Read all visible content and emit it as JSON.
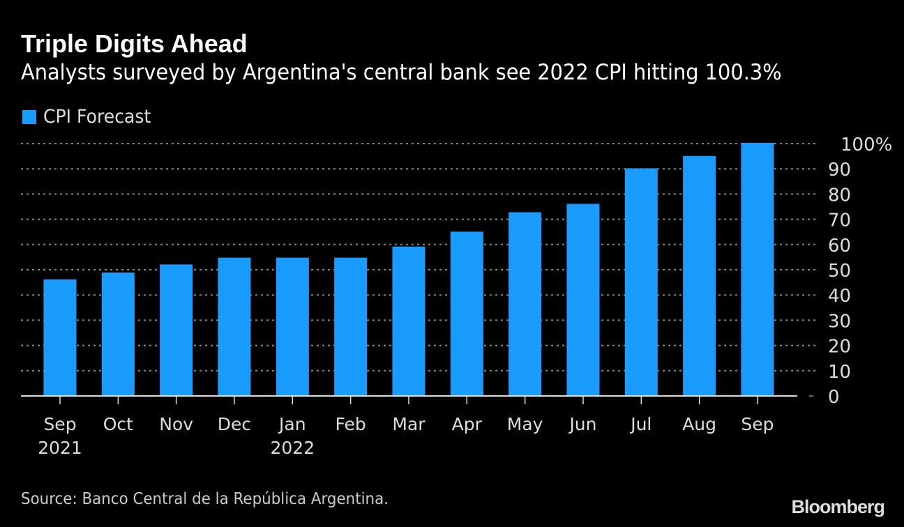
{
  "title": "Triple Digits Ahead",
  "subtitle": "Analysts surveyed by Argentina's central bank see 2022 CPI hitting 100.3%",
  "source": "Source: Banco Central de la República Argentina.",
  "logo": "Bloomberg",
  "colors": {
    "bar": "#1a9cff",
    "background": "#000000",
    "grid": "#888888"
  },
  "chart_data": {
    "type": "bar",
    "legend": [
      {
        "name": "CPI Forecast",
        "color": "#1a9cff"
      }
    ],
    "legend_placement": "top-left",
    "categories": [
      "Sep 2021",
      "Oct 2021",
      "Nov 2021",
      "Dec 2021",
      "Jan 2022",
      "Feb 2022",
      "Mar 2022",
      "Apr 2022",
      "May 2022",
      "Jun 2022",
      "Jul 2022",
      "Aug 2022",
      "Sep 2022"
    ],
    "x_tick_labels": [
      {
        "month": "Sep",
        "year": "2021"
      },
      {
        "month": "Oct"
      },
      {
        "month": "Nov"
      },
      {
        "month": "Dec"
      },
      {
        "month": "Jan",
        "year": "2022"
      },
      {
        "month": "Feb"
      },
      {
        "month": "Mar"
      },
      {
        "month": "Apr"
      },
      {
        "month": "May"
      },
      {
        "month": "Jun"
      },
      {
        "month": "Jul"
      },
      {
        "month": "Aug"
      },
      {
        "month": "Sep"
      }
    ],
    "series": [
      {
        "name": "CPI Forecast",
        "values": [
          46.2,
          48.9,
          52.1,
          54.8,
          54.8,
          54.8,
          59.2,
          65.1,
          72.8,
          76.1,
          90.2,
          95.1,
          100.3
        ]
      }
    ],
    "ylim": [
      0,
      100
    ],
    "y_ticks": [
      0,
      10,
      20,
      30,
      40,
      50,
      60,
      70,
      80,
      90,
      100
    ],
    "y_tick_labels": [
      "0",
      "10",
      "20",
      "30",
      "40",
      "50",
      "60",
      "70",
      "80",
      "90",
      "100%"
    ],
    "y_axis_side": "right",
    "grid": "horizontal dotted"
  }
}
